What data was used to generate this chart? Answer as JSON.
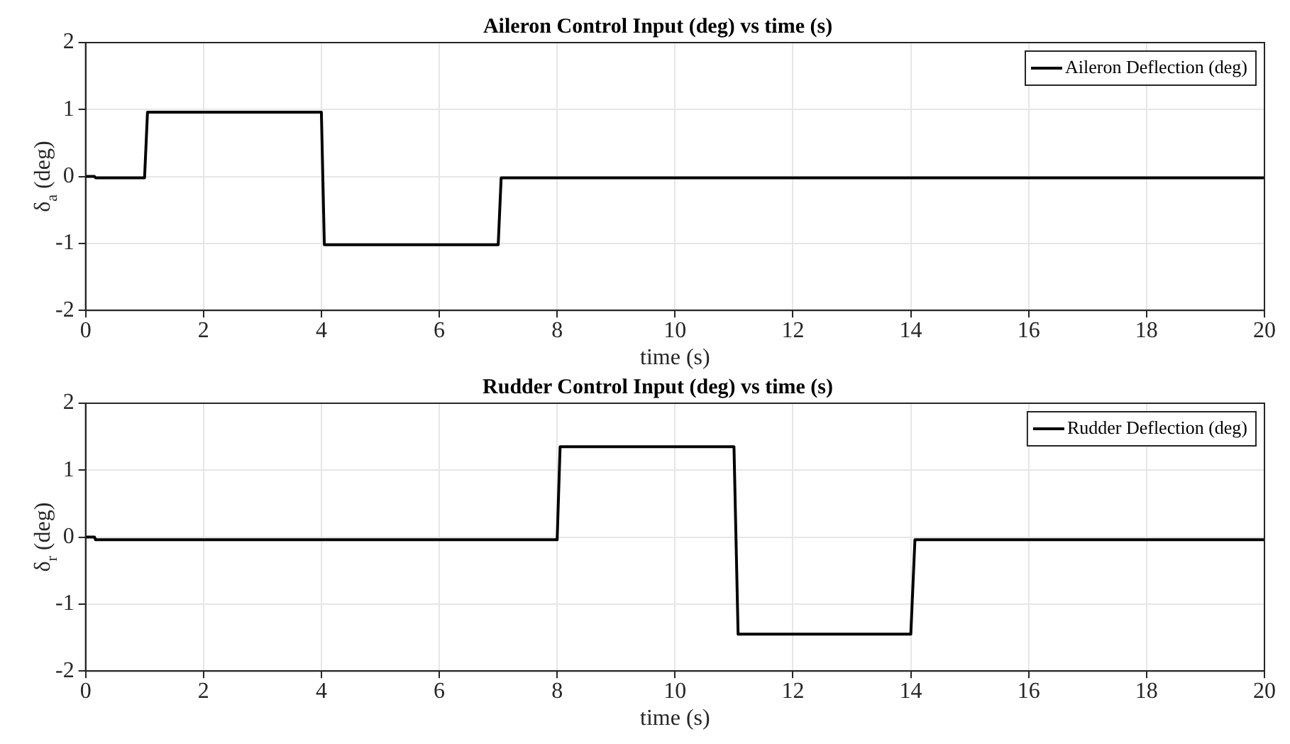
{
  "chart_data": [
    {
      "type": "line",
      "title": "Aileron Control Input (deg) vs time (s)",
      "xlabel": "time (s)",
      "ylabel": "δ$_{a}$ (deg)",
      "series": [
        {
          "name": "Aileron Deflection (deg)",
          "color": "#000000",
          "x": [
            0,
            0.15,
            0.17,
            1.0,
            1.05,
            4.0,
            4.05,
            7.0,
            7.05,
            20
          ],
          "values": [
            0,
            0,
            -0.02,
            -0.02,
            0.96,
            0.96,
            -1.02,
            -1.02,
            -0.02,
            -0.02
          ]
        }
      ],
      "xlim": [
        0,
        20
      ],
      "xticks": [
        0,
        2,
        4,
        6,
        8,
        10,
        12,
        14,
        16,
        18,
        20
      ],
      "ylim": [
        -2,
        2
      ],
      "yticks": [
        -2,
        -1,
        0,
        1,
        2
      ],
      "grid": true,
      "legend": "top right",
      "marker": "none",
      "line_style": "solid"
    },
    {
      "type": "line",
      "title": "Rudder Control Input (deg) vs time (s)",
      "xlabel": "time (s)",
      "ylabel": "δ$_{r}$ (deg)",
      "series": [
        {
          "name": "Rudder Deflection (deg)",
          "color": "#000000",
          "x": [
            0,
            0.15,
            0.17,
            8.0,
            8.05,
            11.0,
            11.07,
            14.0,
            14.07,
            20
          ],
          "values": [
            0,
            0,
            -0.04,
            -0.04,
            1.35,
            1.35,
            -1.45,
            -1.45,
            -0.04,
            -0.04
          ]
        }
      ],
      "xlim": [
        0,
        20
      ],
      "xticks": [
        0,
        2,
        4,
        6,
        8,
        10,
        12,
        14,
        16,
        18,
        20
      ],
      "ylim": [
        -2,
        2
      ],
      "yticks": [
        -2,
        -1,
        0,
        1,
        2
      ],
      "grid": true,
      "legend": "top right",
      "marker": "none",
      "line_style": "solid"
    }
  ]
}
